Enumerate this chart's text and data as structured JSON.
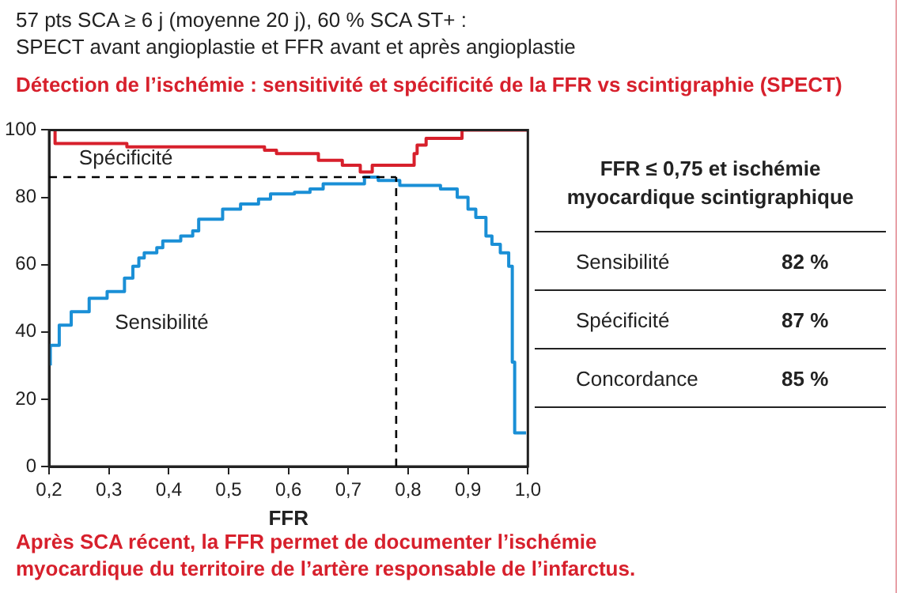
{
  "chart_data": [
    {
      "type": "step",
      "subtitle": "57 pts SCA ≥ 6 j (moyenne 20 j), 60 % SCA ST+ :\nSPECT avant angioplastie et FFR avant et après angioplastie",
      "title": "Détection de l’ischémie : sensitivité et spécificité de la FFR vs scintigraphie (SPECT)",
      "xlabel": "FFR",
      "series": [
        {
          "name": "Spécificité",
          "color": "#d7202c",
          "x": [
            0.21,
            0.33,
            0.56,
            0.58,
            0.65,
            0.69,
            0.72,
            0.74,
            0.81,
            0.815,
            0.83,
            0.89,
            0.91,
            1.0
          ],
          "values": [
            100,
            96,
            95,
            94,
            93,
            91,
            89.5,
            87.5,
            89.5,
            93,
            95.5,
            97.5,
            100,
            100
          ]
        },
        {
          "name": "Sensibilité",
          "color": "#1a8fd6",
          "x": [
            0.202,
            0.217,
            0.237,
            0.267,
            0.297,
            0.326,
            0.34,
            0.35,
            0.359,
            0.38,
            0.39,
            0.42,
            0.44,
            0.45,
            0.49,
            0.52,
            0.55,
            0.57,
            0.61,
            0.636,
            0.658,
            0.727,
            0.75,
            0.786,
            0.854,
            0.882,
            0.9,
            0.913,
            0.93,
            0.94,
            0.954,
            0.968,
            0.974,
            0.978,
            0.997
          ],
          "values": [
            30,
            36,
            42,
            46,
            50,
            52,
            56,
            59.5,
            62,
            63.5,
            65,
            67,
            68.5,
            70,
            73.5,
            76.5,
            78,
            79.5,
            81,
            81.5,
            82.5,
            84,
            86,
            85,
            83.5,
            82.5,
            80,
            76.5,
            74,
            68.5,
            66,
            63.5,
            59.5,
            31,
            10
          ]
        }
      ],
      "xlim": [
        0.2,
        1.0
      ],
      "xticks": [
        {
          "value": 0.2,
          "label": "0,2"
        },
        {
          "value": 0.3,
          "label": "0,3"
        },
        {
          "value": 0.4,
          "label": "0,4"
        },
        {
          "value": 0.5,
          "label": "0,5"
        },
        {
          "value": 0.6,
          "label": "0,6"
        },
        {
          "value": 0.7,
          "label": "0,7"
        },
        {
          "value": 0.8,
          "label": "0,8"
        },
        {
          "value": 0.9,
          "label": "0,9"
        },
        {
          "value": 1.0,
          "label": "1,0"
        }
      ],
      "ylim": [
        0,
        100
      ],
      "yticks": [
        0,
        20,
        40,
        60,
        80,
        100
      ],
      "ref_lines": [
        {
          "axis": "y",
          "value": 86,
          "color": "#000000",
          "line_style": "dashed"
        },
        {
          "axis": "x",
          "value": 0.78,
          "color": "#000000",
          "line_style": "dashed"
        }
      ],
      "grid": false,
      "legend": false,
      "annotations": [
        "Après SCA récent, la FFR permet de documenter l’ischémie\nmyocardique du territoire de l’artère responsable de l’infarctus."
      ]
    },
    {
      "type": "other",
      "title": "FFR ≤ 0,75 et ischémie\nmyocardique scintigraphique",
      "categories": [
        "Sensibilité",
        "Spécificité",
        "Concordance"
      ],
      "values": [
        82,
        87,
        85
      ],
      "value_labels": [
        "82 %",
        "87 %",
        "85 %"
      ]
    }
  ]
}
